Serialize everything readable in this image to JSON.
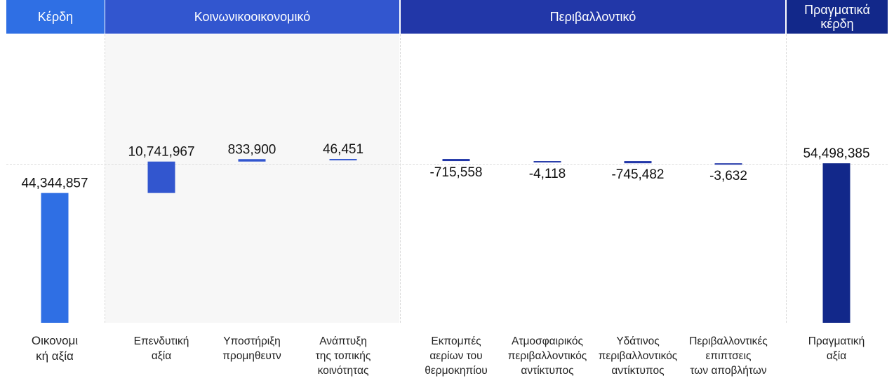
{
  "headers": [
    {
      "label": "Κέρδη"
    },
    {
      "label": "Κοινωνικοοικονομικό"
    },
    {
      "label": "Περιβαλλοντικό"
    },
    {
      "label": "Πραγματικά κέρδη"
    }
  ],
  "colors": {
    "profit": "#2f6fe4",
    "socioeconomic": "#3256cf",
    "environmental": "#2237a8",
    "real": "#12288a"
  },
  "chart_data": {
    "type": "bar",
    "subtype": "waterfall",
    "categories": [
      "Οικονομική αξία",
      "Επενδυτική αξία",
      "Υποστήριξη προμηθευτν",
      "Ανάπτυξη της τοπικής κοινότητας",
      "Εκπομπές αερίων του θερμοκηπίου",
      "Ατμοσφαιρικός περιβαλλοντικός αντίκτυπος",
      "Υδάτινος περιβαλλοντικός αντίκτυπος",
      "Περιβαλλοντικές επιπτσεις των αποβλήτων",
      "Πραγματική αξία"
    ],
    "values": [
      44344857,
      10741967,
      833900,
      46451,
      -715558,
      -4118,
      -745482,
      -3632,
      54498385
    ],
    "value_labels": [
      "44,344,857",
      "10,741,967",
      "833,900",
      "46,451",
      "-715,558",
      "-4,118",
      "-745,482",
      "-3,632",
      "54,498,385"
    ],
    "groups": [
      "profit",
      "socioeconomic",
      "socioeconomic",
      "socioeconomic",
      "environmental",
      "environmental",
      "environmental",
      "environmental",
      "real"
    ],
    "totals": [
      0,
      8
    ]
  }
}
